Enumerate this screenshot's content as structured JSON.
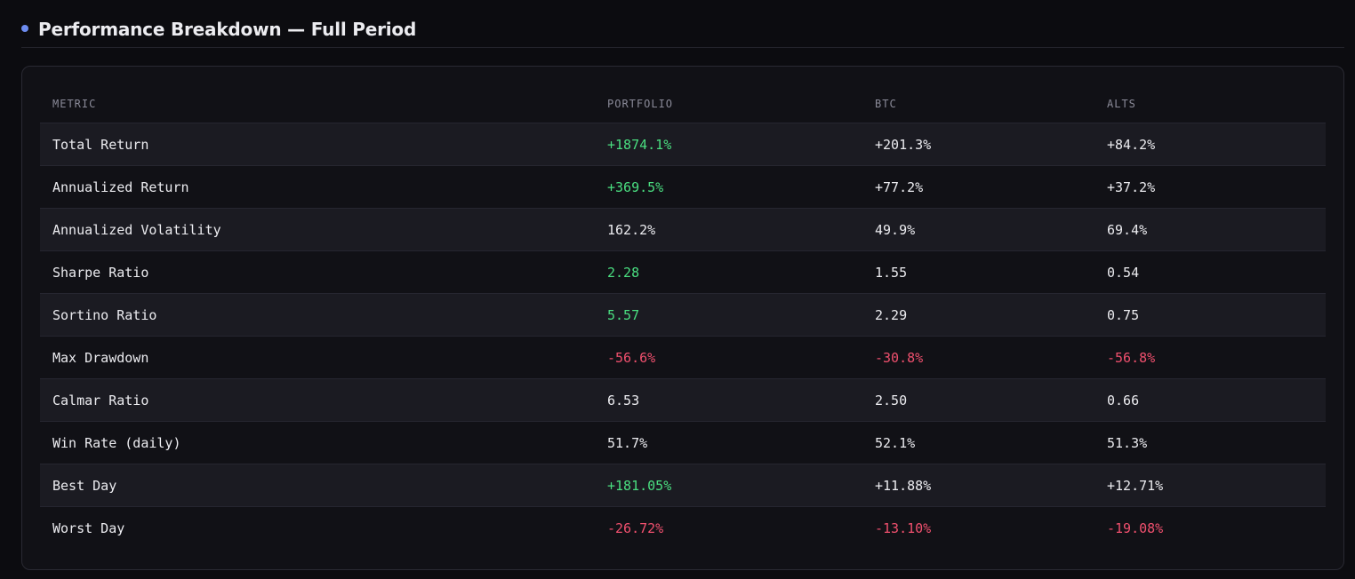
{
  "header": {
    "title": "Performance Breakdown — Full Period",
    "accent_color": "#6d8cf0"
  },
  "table": {
    "columns": [
      "METRIC",
      "PORTFOLIO",
      "BTC",
      "ALTS"
    ],
    "rows": [
      {
        "metric": "Total Return",
        "portfolio": "+1874.1%",
        "btc": "+201.3%",
        "alts": "+84.2%",
        "portfolio_tone": "pos",
        "btc_tone": "neu",
        "alts_tone": "neu"
      },
      {
        "metric": "Annualized Return",
        "portfolio": "+369.5%",
        "btc": "+77.2%",
        "alts": "+37.2%",
        "portfolio_tone": "pos",
        "btc_tone": "neu",
        "alts_tone": "neu"
      },
      {
        "metric": "Annualized Volatility",
        "portfolio": "162.2%",
        "btc": "49.9%",
        "alts": "69.4%",
        "portfolio_tone": "neu",
        "btc_tone": "neu",
        "alts_tone": "neu"
      },
      {
        "metric": "Sharpe Ratio",
        "portfolio": "2.28",
        "btc": "1.55",
        "alts": "0.54",
        "portfolio_tone": "pos",
        "btc_tone": "neu",
        "alts_tone": "neu"
      },
      {
        "metric": "Sortino Ratio",
        "portfolio": "5.57",
        "btc": "2.29",
        "alts": "0.75",
        "portfolio_tone": "pos",
        "btc_tone": "neu",
        "alts_tone": "neu"
      },
      {
        "metric": "Max Drawdown",
        "portfolio": "-56.6%",
        "btc": "-30.8%",
        "alts": "-56.8%",
        "portfolio_tone": "neg",
        "btc_tone": "neg",
        "alts_tone": "neg"
      },
      {
        "metric": "Calmar Ratio",
        "portfolio": "6.53",
        "btc": "2.50",
        "alts": "0.66",
        "portfolio_tone": "neu",
        "btc_tone": "neu",
        "alts_tone": "neu"
      },
      {
        "metric": "Win Rate (daily)",
        "portfolio": "51.7%",
        "btc": "52.1%",
        "alts": "51.3%",
        "portfolio_tone": "neu",
        "btc_tone": "neu",
        "alts_tone": "neu"
      },
      {
        "metric": "Best Day",
        "portfolio": "+181.05%",
        "btc": "+11.88%",
        "alts": "+12.71%",
        "portfolio_tone": "pos",
        "btc_tone": "neu",
        "alts_tone": "neu"
      },
      {
        "metric": "Worst Day",
        "portfolio": "-26.72%",
        "btc": "-13.10%",
        "alts": "-19.08%",
        "portfolio_tone": "neg",
        "btc_tone": "neg",
        "alts_tone": "neg"
      }
    ]
  },
  "colors": {
    "positive": "#4ade80",
    "negative": "#f0506e",
    "neutral": "#ececf0",
    "row_alt_bg": "#1b1b22"
  }
}
